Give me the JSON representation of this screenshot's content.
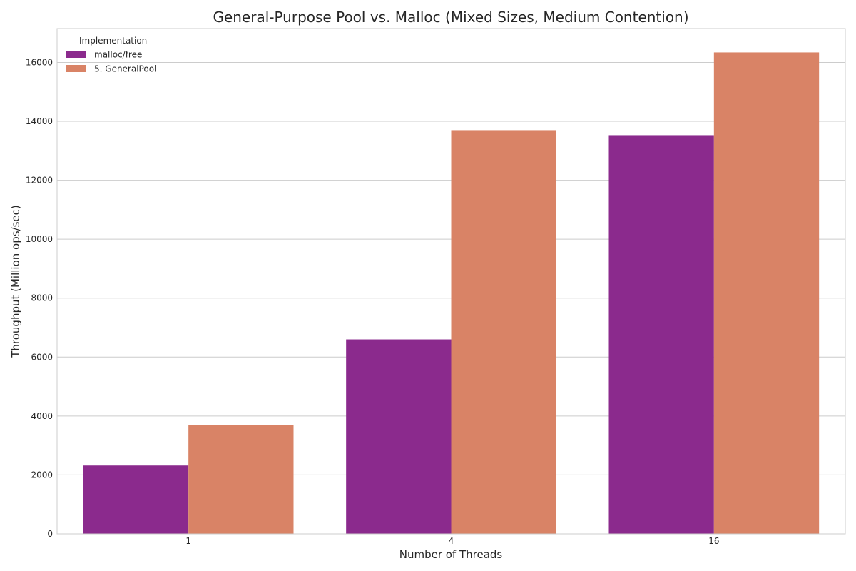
{
  "chart_data": {
    "type": "bar",
    "title": "General-Purpose Pool vs. Malloc (Mixed Sizes, Medium Contention)",
    "xlabel": "Number of Threads",
    "ylabel": "Throughput (Million ops/sec)",
    "categories": [
      "1",
      "4",
      "16"
    ],
    "series": [
      {
        "name": "malloc/free",
        "values": [
          2320,
          6600,
          13530
        ],
        "color": "#8b2a8d"
      },
      {
        "name": "5. GeneralPool",
        "values": [
          3690,
          13700,
          16340
        ],
        "color": "#d98366"
      }
    ],
    "ylim": [
      0,
      17150
    ],
    "yticks": [
      0,
      2000,
      4000,
      6000,
      8000,
      10000,
      12000,
      14000,
      16000
    ],
    "grid": "horizontal",
    "legend": {
      "title": "Implementation",
      "placement": "top-left"
    }
  }
}
